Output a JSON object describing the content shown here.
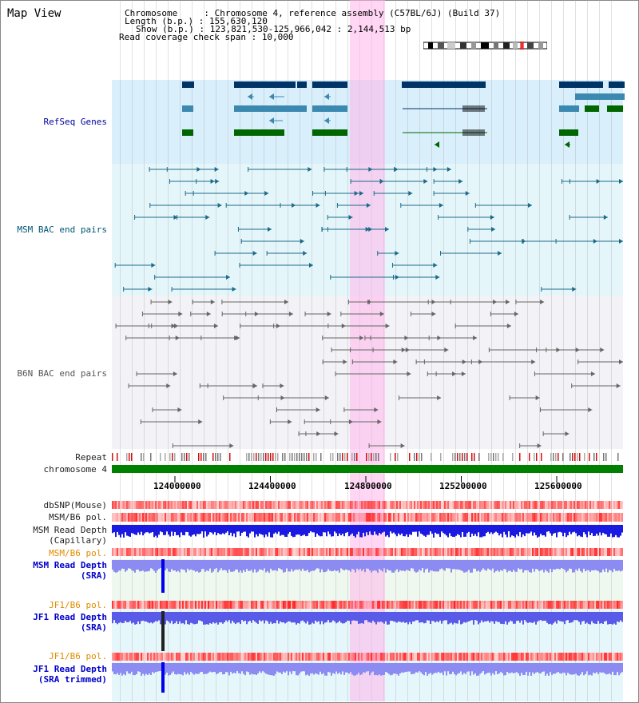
{
  "header": {
    "title": "Map View",
    "chromosome_key": "Chromosome     : ",
    "chromosome_val": "Chromosome 4, reference assembly (C57BL/6J) (Build 37)",
    "length_key": "Length (b.p.) : ",
    "length_val": "155,630,120",
    "show_key": "Show (b.p.) : ",
    "show_val": "123,821,530-125,966,042 : 2,144,513 bp",
    "coverage_key": "Read coverage check span : ",
    "coverage_val": "10,000"
  },
  "tracks": {
    "refseq": "RefSeq Genes",
    "msm_bac": "MSM BAC end pairs",
    "b6n_bac": "B6N BAC end pairs",
    "repeat": "Repeat",
    "chromosome": "chromosome 4",
    "dbsnp": "dbSNP(Mouse)",
    "msm_b6_pol_1": "MSM/B6 pol.",
    "msm_depth_cap_1": "MSM Read Depth",
    "msm_depth_cap_2": "(Capillary)",
    "msm_b6_pol_2": "MSM/B6 pol.",
    "msm_depth_sra_1": "MSM Read Depth",
    "msm_depth_sra_2": "(SRA)",
    "jf1_b6_pol_1": "JF1/B6 pol.",
    "jf1_depth_sra_1": "JF1 Read Depth",
    "jf1_depth_sra_2": "(SRA)",
    "jf1_b6_pol_2": "JF1/B6 pol.",
    "jf1_depth_trim_1": "JF1 Read Depth",
    "jf1_depth_trim_2": "(SRA trimmed)"
  },
  "axis_ticks": [
    "124000000",
    "124400000",
    "124800000",
    "125200000",
    "125600000"
  ],
  "colors": {
    "refseq_bg": "#dff0fb",
    "msm_bg": "#e6f8fb",
    "b6n_bg": "#f4f4f8",
    "highlight": "#ffb4eb",
    "chromosome_bar": "#008000",
    "depth_blue": "#2222dd",
    "depth_light": "#7b7bf0",
    "pol_red": "#ff2222"
  }
}
